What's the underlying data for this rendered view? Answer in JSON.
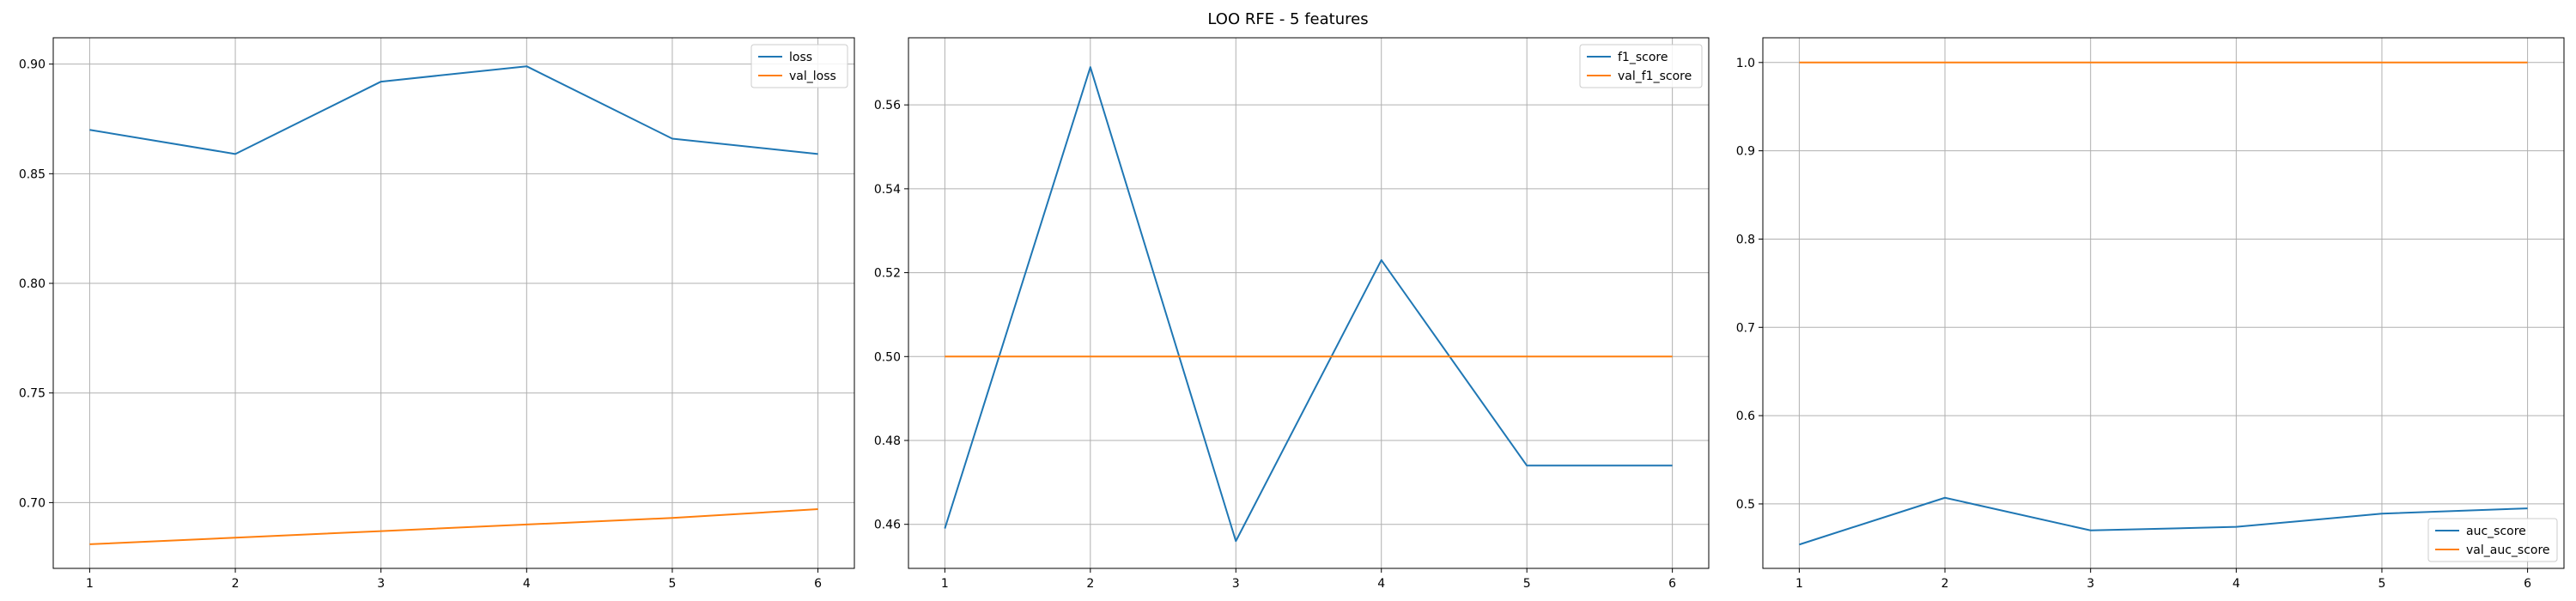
{
  "figure": {
    "title": "LOO RFE - 5 features"
  },
  "colors": {
    "series1": "#1f77b4",
    "series2": "#ff7f0e",
    "grid": "#b0b0b0",
    "axis": "#000000"
  },
  "chart_data": [
    {
      "type": "line",
      "x": [
        1,
        2,
        3,
        4,
        5,
        6
      ],
      "xticks": [
        1,
        2,
        3,
        4,
        5,
        6
      ],
      "xlim": [
        0.75,
        6.25
      ],
      "ylim": [
        0.67,
        0.912
      ],
      "yticks": [
        0.7,
        0.75,
        0.8,
        0.85,
        0.9
      ],
      "ytick_labels": [
        "0.70",
        "0.75",
        "0.80",
        "0.85",
        "0.90"
      ],
      "grid": true,
      "legend_position": "top-right",
      "series": [
        {
          "name": "loss",
          "values": [
            0.87,
            0.859,
            0.892,
            0.899,
            0.866,
            0.859
          ]
        },
        {
          "name": "val_loss",
          "values": [
            0.681,
            0.684,
            0.687,
            0.69,
            0.693,
            0.697
          ]
        }
      ]
    },
    {
      "type": "line",
      "x": [
        1,
        2,
        3,
        4,
        5,
        6
      ],
      "xticks": [
        1,
        2,
        3,
        4,
        5,
        6
      ],
      "xlim": [
        0.75,
        6.25
      ],
      "ylim": [
        0.4495,
        0.576
      ],
      "yticks": [
        0.46,
        0.48,
        0.5,
        0.52,
        0.54,
        0.56
      ],
      "ytick_labels": [
        "0.46",
        "0.48",
        "0.50",
        "0.52",
        "0.54",
        "0.56"
      ],
      "grid": true,
      "legend_position": "top-right",
      "series": [
        {
          "name": "f1_score",
          "values": [
            0.459,
            0.569,
            0.456,
            0.523,
            0.474,
            0.474
          ]
        },
        {
          "name": "val_f1_score",
          "values": [
            0.5,
            0.5,
            0.5,
            0.5,
            0.5,
            0.5
          ]
        }
      ]
    },
    {
      "type": "line",
      "x": [
        1,
        2,
        3,
        4,
        5,
        6
      ],
      "xticks": [
        1,
        2,
        3,
        4,
        5,
        6
      ],
      "xlim": [
        0.75,
        6.25
      ],
      "ylim": [
        0.427,
        1.028
      ],
      "yticks": [
        0.5,
        0.6,
        0.7,
        0.8,
        0.9,
        1.0
      ],
      "ytick_labels": [
        "0.5",
        "0.6",
        "0.7",
        "0.8",
        "0.9",
        "1.0"
      ],
      "grid": true,
      "legend_position": "bottom-right",
      "series": [
        {
          "name": "auc_score",
          "values": [
            0.454,
            0.507,
            0.47,
            0.474,
            0.489,
            0.495
          ]
        },
        {
          "name": "val_auc_score",
          "values": [
            1.0,
            1.0,
            1.0,
            1.0,
            1.0,
            1.0
          ]
        }
      ]
    }
  ]
}
